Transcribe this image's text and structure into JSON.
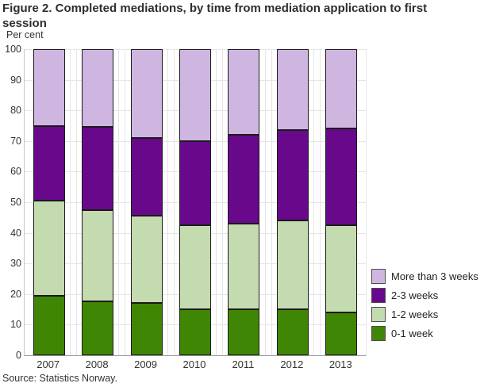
{
  "title": "Figure 2. Completed mediations, by time from mediation application to first session",
  "unit_label": "Per cent",
  "source": "Source: Statistics Norway.",
  "chart_data": {
    "type": "bar",
    "stacked": true,
    "title": "Figure 2. Completed mediations, by time from mediation application to first session",
    "ylabel": "Per cent",
    "xlabel": "",
    "ylim": [
      0,
      100
    ],
    "ytick_step": 10,
    "grid": true,
    "legend_position": "right",
    "legend_order_top_to_bottom": [
      "More than 3 weeks",
      "2-3 weeks",
      "1-2 weeks",
      "0-1 week"
    ],
    "categories": [
      "2007",
      "2008",
      "2009",
      "2010",
      "2011",
      "2012",
      "2013"
    ],
    "series": [
      {
        "name": "0-1 week",
        "color": "#3f8605",
        "values": [
          19.5,
          17.5,
          17.0,
          15.0,
          15.0,
          15.0,
          14.0
        ]
      },
      {
        "name": "1-2 weeks",
        "color": "#c4dbb0",
        "values": [
          31.0,
          30.0,
          28.5,
          27.5,
          28.0,
          29.0,
          28.5
        ]
      },
      {
        "name": "2-3 weeks",
        "color": "#68098c",
        "values": [
          24.5,
          27.0,
          25.5,
          27.5,
          29.0,
          29.5,
          31.5
        ]
      },
      {
        "name": "More than 3 weeks",
        "color": "#ceb6e0",
        "values": [
          25.0,
          25.5,
          29.0,
          30.0,
          28.0,
          26.5,
          26.0
        ]
      }
    ]
  }
}
